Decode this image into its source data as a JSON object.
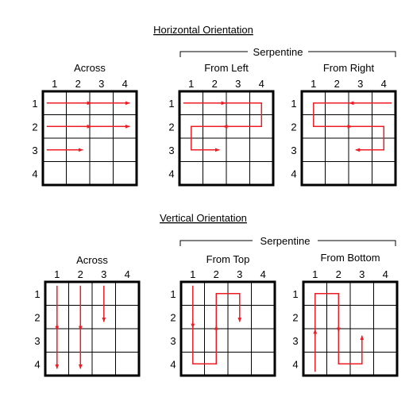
{
  "sections": [
    {
      "title": "Horizontal Orientation",
      "orientation": "horizontal",
      "serpentine_label": "Serpentine",
      "grids": [
        {
          "name": "across",
          "label": "Across",
          "col_headers": [
            "1",
            "2",
            "3",
            "4"
          ],
          "row_headers": [
            "1",
            "2",
            "3",
            "4"
          ],
          "paths": [
            [
              [
                1,
                1
              ],
              [
                1,
                4
              ]
            ],
            [
              [
                2,
                1
              ],
              [
                2,
                4
              ]
            ],
            [
              [
                3,
                1
              ],
              [
                3,
                2
              ]
            ]
          ]
        },
        {
          "name": "from-left",
          "label": "From Left",
          "col_headers": [
            "1",
            "2",
            "3",
            "4"
          ],
          "row_headers": [
            "1",
            "2",
            "3",
            "4"
          ],
          "paths": [
            [
              [
                1,
                1
              ],
              [
                1,
                4
              ],
              [
                2,
                4
              ],
              [
                2,
                1
              ],
              [
                3,
                1
              ],
              [
                3,
                2
              ]
            ]
          ]
        },
        {
          "name": "from-right",
          "label": "From Right",
          "col_headers": [
            "1",
            "2",
            "3",
            "4"
          ],
          "row_headers": [
            "1",
            "2",
            "3",
            "4"
          ],
          "paths": [
            [
              [
                1,
                4
              ],
              [
                1,
                1
              ],
              [
                2,
                1
              ],
              [
                2,
                4
              ],
              [
                3,
                4
              ],
              [
                3,
                3
              ]
            ]
          ]
        }
      ]
    },
    {
      "title": "Vertical Orientation",
      "orientation": "vertical",
      "serpentine_label": "Serpentine",
      "grids": [
        {
          "name": "across-vertical",
          "label": "Across",
          "col_headers": [
            "1",
            "2",
            "3",
            "4"
          ],
          "row_headers": [
            "1",
            "2",
            "3",
            "4"
          ],
          "paths": [
            [
              [
                1,
                1
              ],
              [
                4,
                1
              ]
            ],
            [
              [
                1,
                2
              ],
              [
                4,
                2
              ]
            ],
            [
              [
                1,
                3
              ],
              [
                2,
                3
              ]
            ]
          ]
        },
        {
          "name": "from-top",
          "label": "From Top",
          "col_headers": [
            "1",
            "2",
            "3",
            "4"
          ],
          "row_headers": [
            "1",
            "2",
            "3",
            "4"
          ],
          "paths": [
            [
              [
                1,
                1
              ],
              [
                4,
                1
              ],
              [
                4,
                2
              ],
              [
                1,
                2
              ],
              [
                1,
                3
              ],
              [
                2,
                3
              ]
            ]
          ]
        },
        {
          "name": "from-bottom",
          "label": "From Bottom",
          "col_headers": [
            "1",
            "2",
            "3",
            "4"
          ],
          "row_headers": [
            "1",
            "2",
            "3",
            "4"
          ],
          "paths": [
            [
              [
                4,
                1
              ],
              [
                1,
                1
              ],
              [
                1,
                2
              ],
              [
                4,
                2
              ],
              [
                4,
                3
              ],
              [
                3,
                3
              ]
            ]
          ]
        }
      ]
    }
  ],
  "colors": {
    "arrow": "#ee1c24",
    "line": "#000000",
    "background": "#ffffff"
  }
}
